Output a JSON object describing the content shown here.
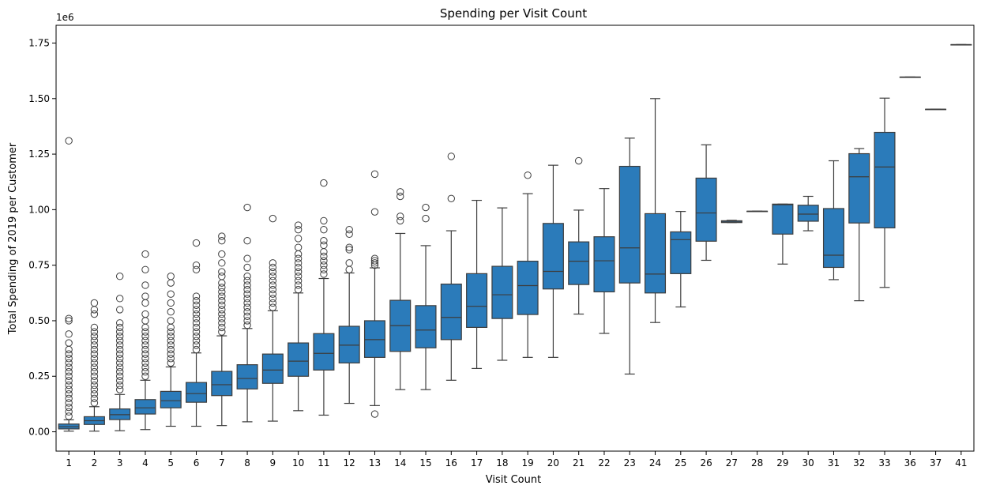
{
  "chart_data": {
    "type": "box",
    "title": "Spending per Visit Count",
    "xlabel": "Visit Count",
    "ylabel": "Total Spending of 2019 per Customer",
    "y_scale_label": "1e6",
    "ylim": [
      -0.087,
      1.83
    ],
    "yticks": [
      0.0,
      0.25,
      0.5,
      0.75,
      1.0,
      1.25,
      1.5,
      1.75
    ],
    "ytick_labels": [
      "0.00",
      "0.25",
      "0.50",
      "0.75",
      "1.00",
      "1.25",
      "1.50",
      "1.75"
    ],
    "box_color": "#2b7bba",
    "line_color": "#3d3d3d",
    "categories": [
      "1",
      "2",
      "3",
      "4",
      "5",
      "6",
      "7",
      "8",
      "9",
      "10",
      "11",
      "12",
      "13",
      "14",
      "15",
      "16",
      "17",
      "18",
      "19",
      "20",
      "21",
      "22",
      "23",
      "24",
      "25",
      "26",
      "27",
      "28",
      "29",
      "30",
      "31",
      "32",
      "33",
      "36",
      "37",
      "41"
    ],
    "boxes": [
      {
        "min": 0.003,
        "q1": 0.013,
        "median": 0.023,
        "q3": 0.035,
        "max": 0.054,
        "outliers": [
          0.07,
          0.09,
          0.11,
          0.13,
          0.15,
          0.17,
          0.19,
          0.21,
          0.23,
          0.25,
          0.27,
          0.29,
          0.31,
          0.33,
          0.35,
          0.37,
          0.4,
          0.44,
          0.5,
          0.51,
          1.31
        ]
      },
      {
        "min": 0.003,
        "q1": 0.033,
        "median": 0.05,
        "q3": 0.068,
        "max": 0.113,
        "outliers": [
          0.13,
          0.15,
          0.17,
          0.19,
          0.21,
          0.23,
          0.25,
          0.27,
          0.29,
          0.31,
          0.33,
          0.35,
          0.37,
          0.39,
          0.41,
          0.43,
          0.45,
          0.47,
          0.53,
          0.55,
          0.58
        ]
      },
      {
        "min": 0.005,
        "q1": 0.055,
        "median": 0.077,
        "q3": 0.103,
        "max": 0.168,
        "outliers": [
          0.19,
          0.21,
          0.23,
          0.25,
          0.27,
          0.29,
          0.31,
          0.33,
          0.35,
          0.37,
          0.39,
          0.41,
          0.43,
          0.45,
          0.47,
          0.49,
          0.55,
          0.6,
          0.7
        ]
      },
      {
        "min": 0.01,
        "q1": 0.08,
        "median": 0.108,
        "q3": 0.145,
        "max": 0.232,
        "outliers": [
          0.25,
          0.27,
          0.29,
          0.31,
          0.33,
          0.35,
          0.37,
          0.39,
          0.41,
          0.43,
          0.45,
          0.47,
          0.5,
          0.53,
          0.58,
          0.61,
          0.66,
          0.73,
          0.8
        ]
      },
      {
        "min": 0.025,
        "q1": 0.108,
        "median": 0.14,
        "q3": 0.182,
        "max": 0.292,
        "outliers": [
          0.31,
          0.33,
          0.35,
          0.37,
          0.39,
          0.41,
          0.43,
          0.45,
          0.47,
          0.5,
          0.54,
          0.58,
          0.62,
          0.67,
          0.7
        ]
      },
      {
        "min": 0.025,
        "q1": 0.133,
        "median": 0.172,
        "q3": 0.222,
        "max": 0.355,
        "outliers": [
          0.37,
          0.39,
          0.41,
          0.43,
          0.45,
          0.47,
          0.49,
          0.51,
          0.53,
          0.55,
          0.57,
          0.59,
          0.61,
          0.73,
          0.75,
          0.85
        ]
      },
      {
        "min": 0.028,
        "q1": 0.163,
        "median": 0.212,
        "q3": 0.272,
        "max": 0.432,
        "outliers": [
          0.45,
          0.47,
          0.49,
          0.51,
          0.53,
          0.55,
          0.57,
          0.59,
          0.61,
          0.63,
          0.65,
          0.67,
          0.7,
          0.72,
          0.76,
          0.8,
          0.86,
          0.88
        ]
      },
      {
        "min": 0.045,
        "q1": 0.193,
        "median": 0.24,
        "q3": 0.302,
        "max": 0.465,
        "outliers": [
          0.48,
          0.5,
          0.52,
          0.54,
          0.56,
          0.58,
          0.6,
          0.62,
          0.64,
          0.66,
          0.68,
          0.7,
          0.74,
          0.78,
          0.86,
          1.01
        ]
      },
      {
        "min": 0.048,
        "q1": 0.218,
        "median": 0.278,
        "q3": 0.35,
        "max": 0.545,
        "outliers": [
          0.56,
          0.58,
          0.6,
          0.62,
          0.64,
          0.66,
          0.68,
          0.7,
          0.72,
          0.74,
          0.76,
          0.96
        ]
      },
      {
        "min": 0.095,
        "q1": 0.25,
        "median": 0.318,
        "q3": 0.4,
        "max": 0.625,
        "outliers": [
          0.64,
          0.66,
          0.68,
          0.7,
          0.72,
          0.74,
          0.76,
          0.78,
          0.8,
          0.83,
          0.87,
          0.91,
          0.93
        ]
      },
      {
        "min": 0.075,
        "q1": 0.278,
        "median": 0.353,
        "q3": 0.442,
        "max": 0.69,
        "outliers": [
          0.71,
          0.73,
          0.75,
          0.77,
          0.79,
          0.81,
          0.84,
          0.86,
          0.91,
          0.95,
          1.12
        ]
      },
      {
        "min": 0.128,
        "q1": 0.31,
        "median": 0.39,
        "q3": 0.475,
        "max": 0.715,
        "outliers": [
          0.73,
          0.76,
          0.82,
          0.83,
          0.89,
          0.91
        ]
      },
      {
        "min": 0.118,
        "q1": 0.335,
        "median": 0.415,
        "q3": 0.5,
        "max": 0.738,
        "outliers": [
          0.75,
          0.76,
          0.77,
          0.78,
          0.99,
          1.16,
          0.08
        ]
      },
      {
        "min": 0.19,
        "q1": 0.362,
        "median": 0.478,
        "q3": 0.592,
        "max": 0.893,
        "outliers": [
          0.95,
          0.97,
          1.06,
          1.08
        ]
      },
      {
        "min": 0.19,
        "q1": 0.378,
        "median": 0.458,
        "q3": 0.568,
        "max": 0.838,
        "outliers": [
          0.96,
          1.01
        ]
      },
      {
        "min": 0.232,
        "q1": 0.415,
        "median": 0.515,
        "q3": 0.665,
        "max": 0.905,
        "outliers": [
          1.05,
          1.24
        ]
      },
      {
        "min": 0.285,
        "q1": 0.47,
        "median": 0.565,
        "q3": 0.712,
        "max": 1.042,
        "outliers": []
      },
      {
        "min": 0.322,
        "q1": 0.51,
        "median": 0.617,
        "q3": 0.745,
        "max": 1.008,
        "outliers": []
      },
      {
        "min": 0.335,
        "q1": 0.528,
        "median": 0.658,
        "q3": 0.768,
        "max": 1.072,
        "outliers": [
          1.155
        ]
      },
      {
        "min": 0.335,
        "q1": 0.643,
        "median": 0.722,
        "q3": 0.938,
        "max": 1.2,
        "outliers": []
      },
      {
        "min": 0.53,
        "q1": 0.663,
        "median": 0.768,
        "q3": 0.855,
        "max": 0.998,
        "outliers": [
          1.22
        ]
      },
      {
        "min": 0.443,
        "q1": 0.63,
        "median": 0.77,
        "q3": 0.878,
        "max": 1.095,
        "outliers": []
      },
      {
        "min": 0.26,
        "q1": 0.67,
        "median": 0.828,
        "q3": 1.195,
        "max": 1.322,
        "outliers": []
      },
      {
        "min": 0.492,
        "q1": 0.625,
        "median": 0.71,
        "q3": 0.982,
        "max": 1.5,
        "outliers": []
      },
      {
        "min": 0.562,
        "q1": 0.712,
        "median": 0.865,
        "q3": 0.9,
        "max": 0.992,
        "outliers": []
      },
      {
        "min": 0.772,
        "q1": 0.858,
        "median": 0.985,
        "q3": 1.142,
        "max": 1.292,
        "outliers": []
      },
      {
        "min": 0.942,
        "q1": 0.942,
        "median": 0.945,
        "q3": 0.95,
        "max": 0.952,
        "outliers": []
      },
      {
        "min": 0.993,
        "q1": 0.993,
        "median": 0.993,
        "q3": 0.993,
        "max": 0.993,
        "outliers": []
      },
      {
        "min": 0.755,
        "q1": 0.89,
        "median": 1.022,
        "q3": 1.025,
        "max": 1.025,
        "outliers": []
      },
      {
        "min": 0.905,
        "q1": 0.948,
        "median": 0.98,
        "q3": 1.02,
        "max": 1.06,
        "outliers": []
      },
      {
        "min": 0.685,
        "q1": 0.74,
        "median": 0.795,
        "q3": 1.005,
        "max": 1.22,
        "outliers": []
      },
      {
        "min": 0.59,
        "q1": 0.94,
        "median": 1.148,
        "q3": 1.252,
        "max": 1.275,
        "outliers": []
      },
      {
        "min": 0.65,
        "q1": 0.918,
        "median": 1.192,
        "q3": 1.348,
        "max": 1.502,
        "outliers": []
      },
      {
        "min": 1.597,
        "q1": 1.597,
        "median": 1.597,
        "q3": 1.597,
        "max": 1.597,
        "outliers": []
      },
      {
        "min": 1.452,
        "q1": 1.452,
        "median": 1.452,
        "q3": 1.452,
        "max": 1.452,
        "outliers": []
      },
      {
        "min": 1.743,
        "q1": 1.743,
        "median": 1.743,
        "q3": 1.743,
        "max": 1.743,
        "outliers": []
      }
    ]
  }
}
